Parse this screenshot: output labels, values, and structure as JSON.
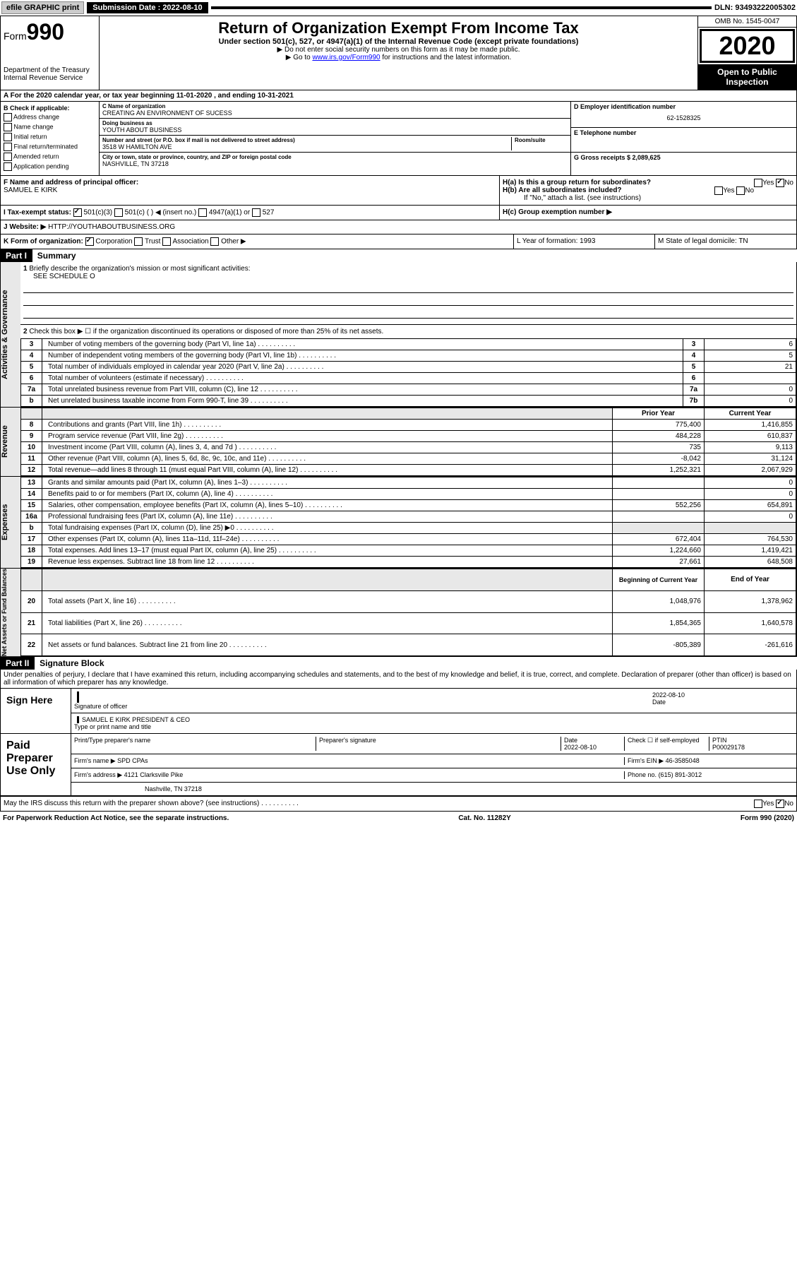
{
  "topbar": {
    "efile": "efile GRAPHIC print",
    "sub_label": "Submission Date : 2022-08-10",
    "dln": "DLN: 93493222005302"
  },
  "header": {
    "form": "Form",
    "num": "990",
    "dept": "Department of the Treasury",
    "irs": "Internal Revenue Service",
    "title": "Return of Organization Exempt From Income Tax",
    "subtitle": "Under section 501(c), 527, or 4947(a)(1) of the Internal Revenue Code (except private foundations)",
    "note1": "▶ Do not enter social security numbers on this form as it may be made public.",
    "note2_pre": "▶ Go to ",
    "note2_link": "www.irs.gov/Form990",
    "note2_post": " for instructions and the latest information.",
    "omb": "OMB No. 1545-0047",
    "year": "2020",
    "open": "Open to Public Inspection"
  },
  "section_a": "A For the 2020 calendar year, or tax year beginning 11-01-2020    , and ending 10-31-2021",
  "check_b": {
    "title": "B Check if applicable:",
    "opts": [
      "Address change",
      "Name change",
      "Initial return",
      "Final return/terminated",
      "Amended return",
      "Application pending"
    ]
  },
  "org": {
    "name_lbl": "C Name of organization",
    "name": "CREATING AN ENVIRONMENT OF SUCESS",
    "dba_lbl": "Doing business as",
    "dba": "YOUTH ABOUT BUSINESS",
    "addr_lbl": "Number and street (or P.O. box if mail is not delivered to street address)",
    "room_lbl": "Room/suite",
    "addr": "3518 W HAMILTON AVE",
    "city_lbl": "City or town, state or province, country, and ZIP or foreign postal code",
    "city": "NASHVILLE, TN  37218"
  },
  "right_col": {
    "ein_lbl": "D Employer identification number",
    "ein": "62-1528325",
    "tel_lbl": "E Telephone number",
    "gross_lbl": "G Gross receipts $ 2,089,625"
  },
  "officer": {
    "lbl": "F  Name and address of principal officer:",
    "name": "SAMUEL E KIRK"
  },
  "h": {
    "ha": "H(a)  Is this a group return for subordinates?",
    "hb": "H(b)  Are all subordinates included?",
    "hb_note": "If \"No,\" attach a list. (see instructions)",
    "hc": "H(c)  Group exemption number ▶",
    "yes": "Yes",
    "no": "No"
  },
  "tax_exempt": {
    "lbl": "I  Tax-exempt status:",
    "o1": "501(c)(3)",
    "o2": "501(c) (  ) ◀ (insert no.)",
    "o3": "4947(a)(1) or",
    "o4": "527"
  },
  "website": {
    "lbl": "J  Website: ▶",
    "val": "HTTP://YOUTHABOUTBUSINESS.ORG"
  },
  "form_org": {
    "lbl": "K Form of organization:",
    "o1": "Corporation",
    "o2": "Trust",
    "o3": "Association",
    "o4": "Other ▶"
  },
  "l_year": {
    "lbl": "L Year of formation: 1993"
  },
  "m_state": {
    "lbl": "M State of legal domicile: TN"
  },
  "part1": {
    "hdr": "Part I",
    "title": "Summary"
  },
  "summary": {
    "q1": "Briefly describe the organization's mission or most significant activities:",
    "q1a": "SEE SCHEDULE O",
    "q2": "Check this box ▶ ☐  if the organization discontinued its operations or disposed of more than 25% of its net assets.",
    "rows_top": [
      {
        "n": "3",
        "txt": "Number of voting members of the governing body (Part VI, line 1a)",
        "rn": "3",
        "v": "6"
      },
      {
        "n": "4",
        "txt": "Number of independent voting members of the governing body (Part VI, line 1b)",
        "rn": "4",
        "v": "5"
      },
      {
        "n": "5",
        "txt": "Total number of individuals employed in calendar year 2020 (Part V, line 2a)",
        "rn": "5",
        "v": "21"
      },
      {
        "n": "6",
        "txt": "Total number of volunteers (estimate if necessary)",
        "rn": "6",
        "v": ""
      },
      {
        "n": "7a",
        "txt": "Total unrelated business revenue from Part VIII, column (C), line 12",
        "rn": "7a",
        "v": "0"
      },
      {
        "n": "b",
        "txt": "Net unrelated business taxable income from Form 990-T, line 39",
        "rn": "7b",
        "v": "0"
      }
    ],
    "col_hdrs": {
      "prior": "Prior Year",
      "current": "Current Year"
    },
    "revenue": [
      {
        "n": "8",
        "txt": "Contributions and grants (Part VIII, line 1h)",
        "p": "775,400",
        "c": "1,416,855"
      },
      {
        "n": "9",
        "txt": "Program service revenue (Part VIII, line 2g)",
        "p": "484,228",
        "c": "610,837"
      },
      {
        "n": "10",
        "txt": "Investment income (Part VIII, column (A), lines 3, 4, and 7d )",
        "p": "735",
        "c": "9,113"
      },
      {
        "n": "11",
        "txt": "Other revenue (Part VIII, column (A), lines 5, 6d, 8c, 9c, 10c, and 11e)",
        "p": "-8,042",
        "c": "31,124"
      },
      {
        "n": "12",
        "txt": "Total revenue—add lines 8 through 11 (must equal Part VIII, column (A), line 12)",
        "p": "1,252,321",
        "c": "2,067,929"
      }
    ],
    "expenses": [
      {
        "n": "13",
        "txt": "Grants and similar amounts paid (Part IX, column (A), lines 1–3)",
        "p": "",
        "c": "0"
      },
      {
        "n": "14",
        "txt": "Benefits paid to or for members (Part IX, column (A), line 4)",
        "p": "",
        "c": "0"
      },
      {
        "n": "15",
        "txt": "Salaries, other compensation, employee benefits (Part IX, column (A), lines 5–10)",
        "p": "552,256",
        "c": "654,891"
      },
      {
        "n": "16a",
        "txt": "Professional fundraising fees (Part IX, column (A), line 11e)",
        "p": "",
        "c": "0"
      },
      {
        "n": "b",
        "txt": "Total fundraising expenses (Part IX, column (D), line 25) ▶0",
        "p": "—",
        "c": "—"
      },
      {
        "n": "17",
        "txt": "Other expenses (Part IX, column (A), lines 11a–11d, 11f–24e)",
        "p": "672,404",
        "c": "764,530"
      },
      {
        "n": "18",
        "txt": "Total expenses. Add lines 13–17 (must equal Part IX, column (A), line 25)",
        "p": "1,224,660",
        "c": "1,419,421"
      },
      {
        "n": "19",
        "txt": "Revenue less expenses. Subtract line 18 from line 12",
        "p": "27,661",
        "c": "648,508"
      }
    ],
    "net_hdrs": {
      "begin": "Beginning of Current Year",
      "end": "End of Year"
    },
    "net": [
      {
        "n": "20",
        "txt": "Total assets (Part X, line 16)",
        "p": "1,048,976",
        "c": "1,378,962"
      },
      {
        "n": "21",
        "txt": "Total liabilities (Part X, line 26)",
        "p": "1,854,365",
        "c": "1,640,578"
      },
      {
        "n": "22",
        "txt": "Net assets or fund balances. Subtract line 21 from line 20",
        "p": "-805,389",
        "c": "-261,616"
      }
    ],
    "vlabels": {
      "gov": "Activities & Governance",
      "rev": "Revenue",
      "exp": "Expenses",
      "net": "Net Assets or Fund Balances"
    }
  },
  "part2": {
    "hdr": "Part II",
    "title": "Signature Block",
    "decl": "Under penalties of perjury, I declare that I have examined this return, including accompanying schedules and statements, and to the best of my knowledge and belief, it is true, correct, and complete. Declaration of preparer (other than officer) is based on all information of which preparer has any knowledge."
  },
  "sign": {
    "here": "Sign Here",
    "sig_officer": "Signature of officer",
    "date": "Date",
    "date_val": "2022-08-10",
    "name": "SAMUEL E KIRK  PRESIDENT & CEO",
    "type_name": "Type or print name and title"
  },
  "paid": {
    "title": "Paid Preparer Use Only",
    "print_name": "Print/Type preparer's name",
    "prep_sig": "Preparer's signature",
    "date": "Date",
    "date_val": "2022-08-10",
    "check": "Check ☐  if self-employed",
    "ptin_lbl": "PTIN",
    "ptin": "P00029178",
    "firm_name_lbl": "Firm's name    ▶",
    "firm_name": "SPD CPAs",
    "firm_ein_lbl": "Firm's EIN ▶",
    "firm_ein": "46-3585048",
    "firm_addr_lbl": "Firm's address ▶",
    "firm_addr1": "4121 Clarksville Pike",
    "firm_addr2": "Nashville, TN  37218",
    "phone_lbl": "Phone no.",
    "phone": "(615) 891-3012"
  },
  "irs_discuss": "May the IRS discuss this return with the preparer shown above? (see instructions)",
  "footer": {
    "left": "For Paperwork Reduction Act Notice, see the separate instructions.",
    "mid": "Cat. No. 11282Y",
    "right": "Form 990 (2020)"
  },
  "colors": {
    "black": "#000000",
    "link": "#0000ff",
    "gray_bg": "#e8e8e8"
  }
}
